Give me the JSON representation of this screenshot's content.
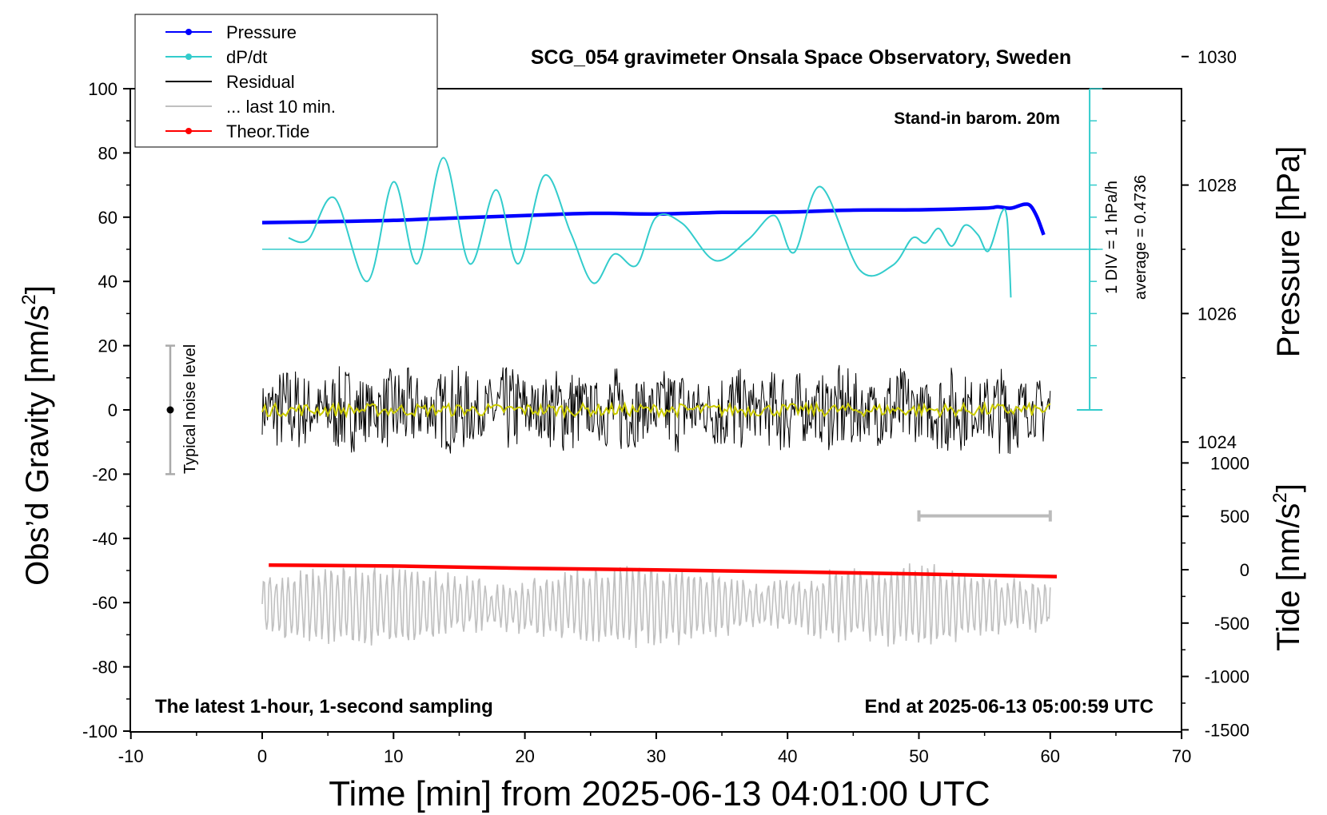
{
  "title": "SCG_054 gravimeter Onsala Space Observatory, Sweden",
  "xlabel": "Time [min] from 2025-06-13 04:01:00 UTC",
  "ylabel_left": "Obs’d Gravity [nm/s",
  "ylabel_left_sup": "2",
  "ylabel_left_end": "]",
  "ylabel_right_pressure": "Pressure [hPa]",
  "ylabel_right_tide": "Tide [nm/s",
  "ylabel_right_tide_sup": "2",
  "ylabel_right_tide_end": "]",
  "annotation_barom": "Stand-in barom. 20m",
  "annotation_div": "1 DIV = 1 hPa/h",
  "annotation_avg": "average = 0.4736",
  "annotation_noise": "Typical noise level",
  "footer_left": "The latest 1-hour, 1-second sampling",
  "footer_right": "End at 2025-06-13 05:00:59 UTC",
  "legend": [
    {
      "label": "Pressure",
      "color": "#0000ff",
      "marker": true
    },
    {
      "label": "dP/dt",
      "color": "#33cccc",
      "marker": true
    },
    {
      "label": "Residual",
      "color": "#000000",
      "marker": false
    },
    {
      "label": "... last 10 min.",
      "color": "#c0c0c0",
      "marker": false
    },
    {
      "label": "Theor.Tide",
      "color": "#ff0000",
      "marker": true
    }
  ],
  "chart_data": {
    "type": "line",
    "xlim": [
      -10,
      70
    ],
    "ylim_gravity": [
      -100,
      100
    ],
    "ylim_pressure": [
      1018,
      1032
    ],
    "ylim_tide": [
      -1500,
      1500
    ],
    "x_ticks": [
      "-10",
      "0",
      "10",
      "20",
      "30",
      "40",
      "50",
      "60",
      "70"
    ],
    "y_ticks_left": [
      "100",
      "80",
      "60",
      "40",
      "20",
      "0",
      "-20",
      "-40",
      "-60",
      "-80",
      "-100"
    ],
    "y_ticks_pressure": [
      "1030",
      "1028",
      "1026",
      "1024"
    ],
    "y_ticks_tide": [
      "1000",
      "500",
      "0",
      "-500",
      "-1000",
      "-1500"
    ],
    "noise_bar": {
      "x": -7,
      "center": 0,
      "half_range": 20
    },
    "last10_bar": {
      "x_start": 50,
      "x_end": 60,
      "y": -33
    },
    "dpdt_zero_line": {
      "y": 50,
      "x_start": 0,
      "x_end": 64
    },
    "dpdt_axis": {
      "x": 63,
      "y_top": 100,
      "y_bottom": 0
    },
    "series": [
      {
        "name": "Pressure",
        "color": "#0000ff",
        "x": [
          0,
          5,
          10,
          15,
          20,
          25,
          30,
          35,
          40,
          45,
          50,
          55,
          56,
          57,
          58,
          58.5,
          59,
          59.5
        ],
        "y": [
          58.3,
          58.6,
          59.0,
          59.8,
          60.5,
          61.2,
          61.0,
          61.5,
          61.6,
          62.2,
          62.3,
          62.8,
          63.2,
          62.8,
          64.0,
          63.5,
          60.0,
          54.5
        ]
      },
      {
        "name": "dP/dt",
        "color": "#33cccc",
        "x": [
          2,
          3.5,
          5.5,
          8,
          10,
          11.8,
          13.8,
          15.8,
          17.8,
          19.5,
          21.5,
          23.5,
          25.2,
          26.8,
          28.5,
          30,
          32,
          34.5,
          37,
          39,
          40.5,
          42.5,
          45.5,
          48,
          49.5,
          50.5,
          51.5,
          52.5,
          53.5,
          54.5,
          55.3,
          56.3,
          56.7,
          56.9,
          57.0
        ],
        "y": [
          53.5,
          53,
          66,
          40,
          71,
          45.5,
          78.5,
          45.5,
          68.5,
          45.5,
          73,
          55,
          39.5,
          48.5,
          45,
          60,
          58,
          46.5,
          53,
          60.5,
          49,
          69.5,
          43.5,
          45,
          53.5,
          52,
          56.5,
          51,
          57.5,
          54.5,
          49.5,
          61.5,
          60,
          45,
          35
        ]
      },
      {
        "name": "Residual",
        "color": "#000000",
        "x_range": [
          0,
          60
        ],
        "amplitude": 14
      },
      {
        "name": "Residual (smoothed)",
        "color": "#cccc00",
        "x_range": [
          0,
          60
        ],
        "amplitude": 2
      },
      {
        "name": "... last 10 min.",
        "color": "#c0c0c0",
        "x_range": [
          0,
          60
        ],
        "center": -61,
        "amplitude": 11
      },
      {
        "name": "Theor.Tide",
        "color": "#ff0000",
        "x": [
          0.5,
          10,
          20,
          30,
          40,
          50,
          60.5
        ],
        "y": [
          -48.3,
          -48.6,
          -49.3,
          -49.8,
          -50.4,
          -51.1,
          -51.9
        ]
      }
    ]
  }
}
